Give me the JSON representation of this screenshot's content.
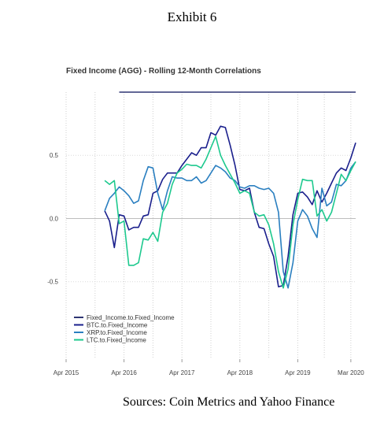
{
  "header": {
    "exhibit_label": "Exhibit 6"
  },
  "footer": {
    "source": "Sources: Coin Metrics and Yahoo Finance"
  },
  "chart_data": {
    "type": "line",
    "title": "Fixed Income (AGG) - Rolling 12-Month Correlations",
    "xlabel": "",
    "ylabel": "",
    "x_tick_labels": [
      "Apr 2015",
      "Apr 2016",
      "Apr 2017",
      "Apr 2018",
      "Apr 2019",
      "Mar 2020"
    ],
    "x_tick_dates": [
      "2015-04",
      "2016-04",
      "2017-04",
      "2018-04",
      "2019-04",
      "2020-03"
    ],
    "y_ticks": [
      -0.5,
      0.0,
      0.5
    ],
    "y_tick_labels": [
      "-0.5",
      "0.0",
      "0.5"
    ],
    "ylim": [
      -1.1,
      1.0
    ],
    "xlim": [
      "2015-04",
      "2020-04"
    ],
    "grid": true,
    "legend_position": "bottom-left",
    "series": [
      {
        "name": "Fixed_Income.to.Fixed_Income",
        "color": "#2f3573",
        "points": [
          [
            "2016-03",
            1.0
          ],
          [
            "2020-04",
            1.0
          ]
        ]
      },
      {
        "name": "BTC.to.Fixed_Income",
        "color": "#1a1f8c",
        "points": [
          [
            "2015-12",
            0.06
          ],
          [
            "2016-01",
            -0.02
          ],
          [
            "2016-02",
            -0.23
          ],
          [
            "2016-03",
            0.03
          ],
          [
            "2016-04",
            0.02
          ],
          [
            "2016-05",
            -0.09
          ],
          [
            "2016-06",
            -0.07
          ],
          [
            "2016-07",
            -0.07
          ],
          [
            "2016-08",
            0.02
          ],
          [
            "2016-09",
            0.03
          ],
          [
            "2016-10",
            0.2
          ],
          [
            "2016-11",
            0.22
          ],
          [
            "2016-12",
            0.31
          ],
          [
            "2017-01",
            0.36
          ],
          [
            "2017-02",
            0.36
          ],
          [
            "2017-03",
            0.36
          ],
          [
            "2017-04",
            0.42
          ],
          [
            "2017-05",
            0.47
          ],
          [
            "2017-06",
            0.52
          ],
          [
            "2017-07",
            0.5
          ],
          [
            "2017-08",
            0.56
          ],
          [
            "2017-09",
            0.56
          ],
          [
            "2017-10",
            0.68
          ],
          [
            "2017-11",
            0.66
          ],
          [
            "2017-12",
            0.73
          ],
          [
            "2018-01",
            0.72
          ],
          [
            "2018-02",
            0.58
          ],
          [
            "2018-03",
            0.42
          ],
          [
            "2018-04",
            0.23
          ],
          [
            "2018-05",
            0.22
          ],
          [
            "2018-06",
            0.24
          ],
          [
            "2018-07",
            0.05
          ],
          [
            "2018-08",
            -0.07
          ],
          [
            "2018-09",
            -0.08
          ],
          [
            "2018-10",
            -0.2
          ],
          [
            "2018-11",
            -0.3
          ],
          [
            "2018-12",
            -0.54
          ],
          [
            "2019-01",
            -0.53
          ],
          [
            "2019-02",
            -0.3
          ],
          [
            "2019-03",
            0.03
          ],
          [
            "2019-04",
            0.2
          ],
          [
            "2019-05",
            0.21
          ],
          [
            "2019-06",
            0.17
          ],
          [
            "2019-07",
            0.11
          ],
          [
            "2019-08",
            0.22
          ],
          [
            "2019-09",
            0.13
          ],
          [
            "2019-10",
            0.2
          ],
          [
            "2019-11",
            0.28
          ],
          [
            "2019-12",
            0.36
          ],
          [
            "2020-01",
            0.4
          ],
          [
            "2020-02",
            0.38
          ],
          [
            "2020-03",
            0.48
          ],
          [
            "2020-04",
            0.6
          ]
        ]
      },
      {
        "name": "XRP.to.Fixed_Income",
        "color": "#2a7fc0",
        "points": [
          [
            "2015-12",
            0.06
          ],
          [
            "2016-01",
            0.16
          ],
          [
            "2016-02",
            0.2
          ],
          [
            "2016-03",
            0.25
          ],
          [
            "2016-04",
            0.22
          ],
          [
            "2016-05",
            0.18
          ],
          [
            "2016-06",
            0.12
          ],
          [
            "2016-07",
            0.14
          ],
          [
            "2016-08",
            0.3
          ],
          [
            "2016-09",
            0.41
          ],
          [
            "2016-10",
            0.4
          ],
          [
            "2016-11",
            0.2
          ],
          [
            "2016-12",
            0.07
          ],
          [
            "2017-01",
            0.22
          ],
          [
            "2017-02",
            0.33
          ],
          [
            "2017-03",
            0.32
          ],
          [
            "2017-04",
            0.32
          ],
          [
            "2017-05",
            0.3
          ],
          [
            "2017-06",
            0.3
          ],
          [
            "2017-07",
            0.33
          ],
          [
            "2017-08",
            0.28
          ],
          [
            "2017-09",
            0.3
          ],
          [
            "2017-10",
            0.36
          ],
          [
            "2017-11",
            0.42
          ],
          [
            "2017-12",
            0.4
          ],
          [
            "2018-01",
            0.37
          ],
          [
            "2018-02",
            0.32
          ],
          [
            "2018-03",
            0.3
          ],
          [
            "2018-04",
            0.25
          ],
          [
            "2018-05",
            0.24
          ],
          [
            "2018-06",
            0.26
          ],
          [
            "2018-07",
            0.26
          ],
          [
            "2018-08",
            0.24
          ],
          [
            "2018-09",
            0.23
          ],
          [
            "2018-10",
            0.24
          ],
          [
            "2018-11",
            0.2
          ],
          [
            "2018-12",
            0.05
          ],
          [
            "2019-01",
            -0.42
          ],
          [
            "2019-02",
            -0.55
          ],
          [
            "2019-03",
            -0.35
          ],
          [
            "2019-04",
            -0.02
          ],
          [
            "2019-05",
            0.07
          ],
          [
            "2019-06",
            0.02
          ],
          [
            "2019-07",
            -0.08
          ],
          [
            "2019-08",
            -0.15
          ],
          [
            "2019-09",
            0.24
          ],
          [
            "2019-10",
            0.1
          ],
          [
            "2019-11",
            0.13
          ],
          [
            "2019-12",
            0.27
          ],
          [
            "2020-01",
            0.26
          ],
          [
            "2020-02",
            0.3
          ],
          [
            "2020-03",
            0.4
          ],
          [
            "2020-04",
            0.45
          ]
        ]
      },
      {
        "name": "LTC.to.Fixed_Income",
        "color": "#1dc98e",
        "points": [
          [
            "2015-12",
            0.3
          ],
          [
            "2016-01",
            0.27
          ],
          [
            "2016-02",
            0.3
          ],
          [
            "2016-03",
            -0.04
          ],
          [
            "2016-04",
            -0.02
          ],
          [
            "2016-05",
            -0.37
          ],
          [
            "2016-06",
            -0.37
          ],
          [
            "2016-07",
            -0.35
          ],
          [
            "2016-08",
            -0.16
          ],
          [
            "2016-09",
            -0.17
          ],
          [
            "2016-10",
            -0.11
          ],
          [
            "2016-11",
            -0.18
          ],
          [
            "2016-12",
            0.05
          ],
          [
            "2017-01",
            0.12
          ],
          [
            "2017-02",
            0.27
          ],
          [
            "2017-03",
            0.36
          ],
          [
            "2017-04",
            0.39
          ],
          [
            "2017-05",
            0.43
          ],
          [
            "2017-06",
            0.42
          ],
          [
            "2017-07",
            0.42
          ],
          [
            "2017-08",
            0.4
          ],
          [
            "2017-09",
            0.47
          ],
          [
            "2017-10",
            0.56
          ],
          [
            "2017-11",
            0.65
          ],
          [
            "2017-12",
            0.5
          ],
          [
            "2018-01",
            0.42
          ],
          [
            "2018-02",
            0.35
          ],
          [
            "2018-03",
            0.28
          ],
          [
            "2018-04",
            0.2
          ],
          [
            "2018-05",
            0.22
          ],
          [
            "2018-06",
            0.2
          ],
          [
            "2018-07",
            0.05
          ],
          [
            "2018-08",
            0.02
          ],
          [
            "2018-09",
            0.03
          ],
          [
            "2018-10",
            -0.05
          ],
          [
            "2018-11",
            -0.2
          ],
          [
            "2018-12",
            -0.42
          ],
          [
            "2019-01",
            -0.55
          ],
          [
            "2019-02",
            -0.4
          ],
          [
            "2019-03",
            -0.05
          ],
          [
            "2019-04",
            0.15
          ],
          [
            "2019-05",
            0.31
          ],
          [
            "2019-06",
            0.3
          ],
          [
            "2019-07",
            0.3
          ],
          [
            "2019-08",
            0.02
          ],
          [
            "2019-09",
            0.07
          ],
          [
            "2019-10",
            -0.02
          ],
          [
            "2019-11",
            0.05
          ],
          [
            "2019-12",
            0.2
          ],
          [
            "2020-01",
            0.35
          ],
          [
            "2020-02",
            0.3
          ],
          [
            "2020-03",
            0.38
          ],
          [
            "2020-04",
            0.45
          ]
        ]
      }
    ]
  }
}
